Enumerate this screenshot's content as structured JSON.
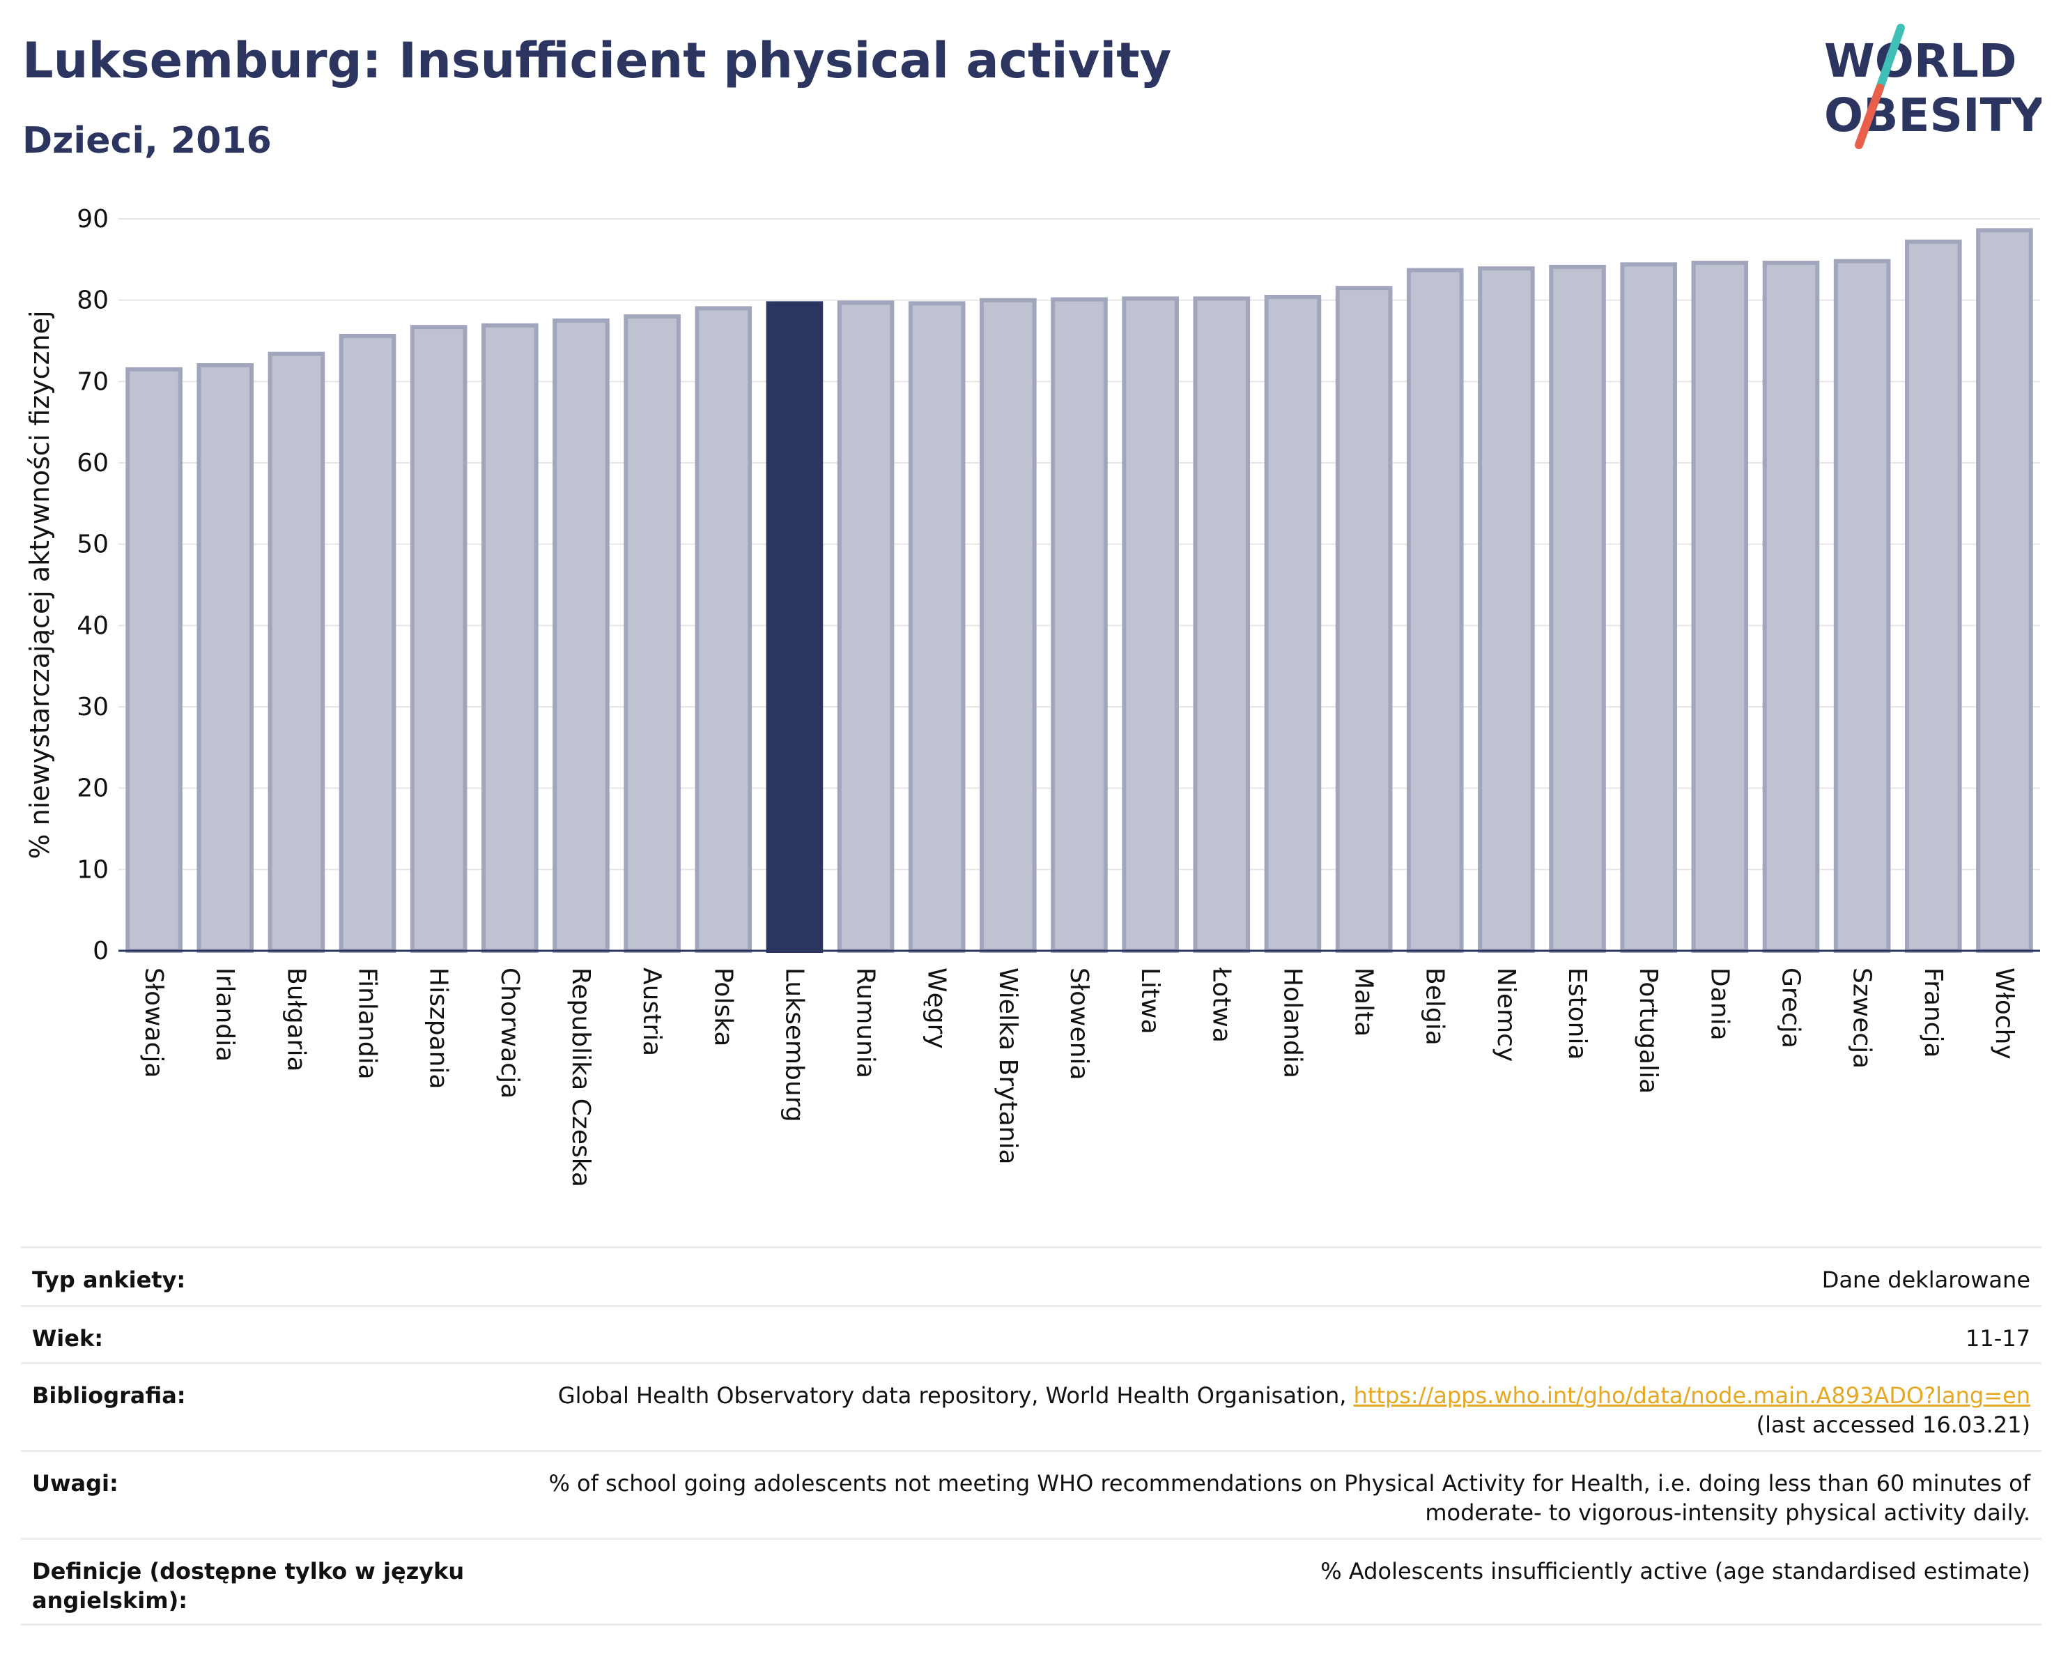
{
  "header": {
    "title": "Luksemburg: Insufficient physical activity",
    "subtitle": "Dzieci, 2016"
  },
  "logo": {
    "line1": "WORLD",
    "line2": "OBESITY",
    "colors": {
      "text": "#2b3560",
      "slash_top": "#3fbfb8",
      "slash_bottom": "#e8604c"
    }
  },
  "colors": {
    "bar": "#bfc2d0",
    "bar_border": "#a2a6bc",
    "highlight": "#2b3560",
    "grid": "#e6e6e6",
    "axis": "#2b3560",
    "link": "#e5a823"
  },
  "chart_data": {
    "type": "bar",
    "ylabel": "% niewystarczającej aktywności fizycznej",
    "ylim": [
      0,
      90
    ],
    "yticks": [
      0,
      10,
      20,
      30,
      40,
      50,
      60,
      70,
      80,
      90
    ],
    "grid": true,
    "highlight": "Luksemburg",
    "categories": [
      "Słowacja",
      "Irlandia",
      "Bułgaria",
      "Finlandia",
      "Hiszpania",
      "Chorwacja",
      "Republika Czeska",
      "Austria",
      "Polska",
      "Luksemburg",
      "Rumunia",
      "Węgry",
      "Wielka Brytania",
      "Słowenia",
      "Litwa",
      "Łotwa",
      "Holandia",
      "Malta",
      "Belgia",
      "Niemcy",
      "Estonia",
      "Portugalia",
      "Dania",
      "Grecja",
      "Szwecja",
      "Francja",
      "Włochy"
    ],
    "values": [
      71.5,
      72.0,
      73.4,
      75.6,
      76.7,
      76.9,
      77.5,
      78.0,
      79.0,
      79.6,
      79.7,
      79.6,
      80.0,
      80.1,
      80.2,
      80.2,
      80.4,
      81.5,
      83.7,
      83.9,
      84.1,
      84.4,
      84.6,
      84.6,
      84.8,
      87.2,
      88.6
    ]
  },
  "meta": {
    "survey_type": {
      "label": "Typ ankiety:",
      "value": "Dane deklarowane"
    },
    "age": {
      "label": "Wiek:",
      "value": "11-17"
    },
    "bibliography": {
      "label": "Bibliografia:",
      "source": "Global Health Observatory data repository, World Health Organisation,",
      "link": "https://apps.who.int/gho/data/node.main.A893ADO?lang=en",
      "accessed": "(last accessed 16.03.21)"
    },
    "notes": {
      "label": "Uwagi:",
      "line1": "% of school going adolescents not meeting WHO recommendations on Physical Activity for Health, i.e. doing less than 60 minutes of",
      "line2": "moderate- to vigorous-intensity physical activity daily."
    },
    "definitions": {
      "label_line1": "Definicje (dostępne tylko w języku",
      "label_line2": "angielskim):",
      "value": "% Adolescents insufficiently active (age standardised estimate)"
    }
  }
}
